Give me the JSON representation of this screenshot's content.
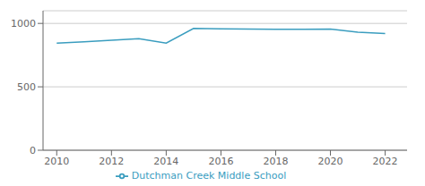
{
  "chart_data": {
    "type": "line",
    "x": [
      2010,
      2011,
      2012,
      2013,
      2014,
      2015,
      2016,
      2017,
      2018,
      2019,
      2020,
      2021,
      2022
    ],
    "series": [
      {
        "name": "Dutchman Creek Middle School",
        "color": "#3a9dbf",
        "values": [
          845,
          855,
          868,
          880,
          845,
          960,
          958,
          955,
          953,
          953,
          955,
          930,
          920
        ]
      }
    ],
    "xlim": [
      2009.5,
      2022.8
    ],
    "xticks": [
      2010,
      2012,
      2014,
      2016,
      2018,
      2020,
      2022
    ],
    "ylim": [
      0,
      1100
    ],
    "yticks": [
      0,
      500,
      1000
    ],
    "grid": true,
    "legend": "bottom"
  }
}
